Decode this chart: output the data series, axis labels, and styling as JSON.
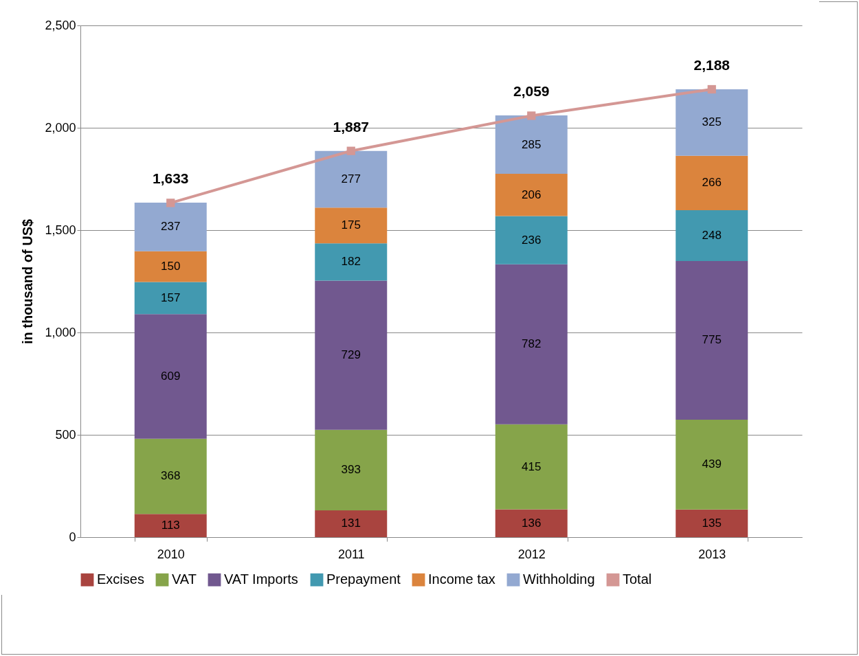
{
  "chart_data": {
    "type": "bar",
    "stacked": true,
    "ylabel": "in thousand of US$",
    "categories": [
      "2010",
      "2011",
      "2012",
      "2013"
    ],
    "ylim": [
      0,
      2500
    ],
    "yticks": [
      0,
      {
        "value": 500,
        "label": "500"
      },
      {
        "value": 1000,
        "label": "1,000"
      },
      {
        "value": 1500,
        "label": "1,500"
      },
      {
        "value": 2000,
        "label": "2,000"
      },
      {
        "value": 2500,
        "label": "2,500"
      }
    ],
    "grid": "y",
    "legend": "bottom",
    "data_labels": true,
    "series": [
      {
        "name": "Excises",
        "color": "#a9443f",
        "values": [
          113,
          131,
          136,
          135
        ]
      },
      {
        "name": "VAT",
        "color": "#86a44a",
        "values": [
          368,
          393,
          415,
          439
        ]
      },
      {
        "name": "VAT Imports",
        "color": "#71588f",
        "values": [
          609,
          729,
          782,
          775
        ]
      },
      {
        "name": "Prepayment",
        "color": "#4299b0",
        "values": [
          157,
          182,
          236,
          248
        ]
      },
      {
        "name": "Income tax",
        "color": "#db843d",
        "values": [
          150,
          175,
          206,
          266
        ]
      },
      {
        "name": "Withholding",
        "color": "#93a9d1",
        "values": [
          237,
          277,
          285,
          325
        ]
      },
      {
        "name": "Total",
        "type": "line",
        "color": "#d49794",
        "marker": "square",
        "values": [
          1633,
          1887,
          2059,
          2188
        ],
        "value_labels": [
          "1,633",
          "1,887",
          "2,059",
          "2,188"
        ]
      }
    ]
  }
}
